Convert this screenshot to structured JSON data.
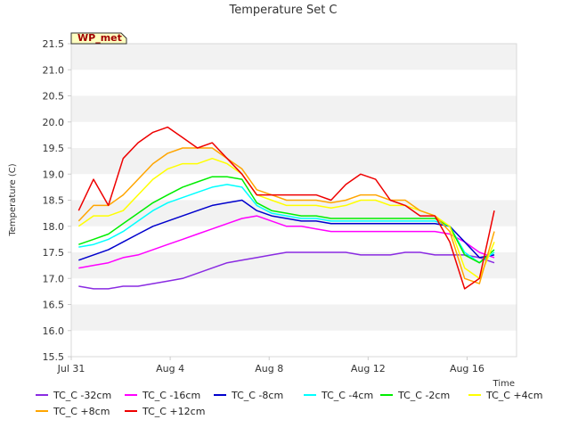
{
  "chart_data": {
    "type": "line",
    "title": "Temperature Set C",
    "xlabel": "Time",
    "ylabel": "Temperature (C)",
    "badge": "WP_met",
    "x_ticks": [
      "Jul 31",
      "Aug 4",
      "Aug 8",
      "Aug 12",
      "Aug 16"
    ],
    "xlim_days": [
      0,
      18
    ],
    "ylim": [
      15.5,
      21.5
    ],
    "y_ticks": [
      15.5,
      16.0,
      16.5,
      17.0,
      17.5,
      18.0,
      18.5,
      19.0,
      19.5,
      20.0,
      20.5,
      21.0,
      21.5
    ],
    "grid": "horizontal bands",
    "legend_position": "bottom",
    "x_days": [
      0.3,
      0.9,
      1.5,
      2.1,
      2.7,
      3.3,
      3.9,
      4.5,
      5.1,
      5.7,
      6.3,
      6.9,
      7.5,
      8.1,
      8.7,
      9.3,
      9.9,
      10.5,
      11.1,
      11.7,
      12.3,
      12.9,
      13.5,
      14.1,
      14.7,
      15.3,
      15.9,
      16.5,
      17.1
    ],
    "series": [
      {
        "name": "TC_C -32cm",
        "color": "#8a2be2",
        "values": [
          16.85,
          16.8,
          16.8,
          16.85,
          16.85,
          16.9,
          16.95,
          17.0,
          17.1,
          17.2,
          17.3,
          17.35,
          17.4,
          17.45,
          17.5,
          17.5,
          17.5,
          17.5,
          17.5,
          17.45,
          17.45,
          17.45,
          17.5,
          17.5,
          17.45,
          17.45,
          17.45,
          17.4,
          17.3
        ]
      },
      {
        "name": "TC_C -16cm",
        "color": "#ff00ff",
        "values": [
          17.2,
          17.25,
          17.3,
          17.4,
          17.45,
          17.55,
          17.65,
          17.75,
          17.85,
          17.95,
          18.05,
          18.15,
          18.2,
          18.1,
          18.0,
          18.0,
          17.95,
          17.9,
          17.9,
          17.9,
          17.9,
          17.9,
          17.9,
          17.9,
          17.9,
          17.85,
          17.7,
          17.5,
          17.4
        ]
      },
      {
        "name": "TC_C -8cm",
        "color": "#0000cd",
        "values": [
          17.35,
          17.45,
          17.55,
          17.7,
          17.85,
          18.0,
          18.1,
          18.2,
          18.3,
          18.4,
          18.45,
          18.5,
          18.3,
          18.2,
          18.15,
          18.1,
          18.1,
          18.05,
          18.05,
          18.05,
          18.05,
          18.05,
          18.05,
          18.05,
          18.05,
          18.0,
          17.7,
          17.4,
          17.45
        ]
      },
      {
        "name": "TC_C -4cm",
        "color": "#00ffff",
        "values": [
          17.6,
          17.65,
          17.75,
          17.9,
          18.1,
          18.3,
          18.45,
          18.55,
          18.65,
          18.75,
          18.8,
          18.75,
          18.4,
          18.25,
          18.2,
          18.15,
          18.15,
          18.1,
          18.1,
          18.1,
          18.1,
          18.1,
          18.1,
          18.1,
          18.1,
          18.0,
          17.5,
          17.3,
          17.5
        ]
      },
      {
        "name": "TC_C -2cm",
        "color": "#00ee00",
        "values": [
          17.65,
          17.75,
          17.85,
          18.05,
          18.25,
          18.45,
          18.6,
          18.75,
          18.85,
          18.95,
          18.95,
          18.9,
          18.45,
          18.3,
          18.25,
          18.2,
          18.2,
          18.15,
          18.15,
          18.15,
          18.15,
          18.15,
          18.15,
          18.15,
          18.15,
          18.0,
          17.45,
          17.3,
          17.55
        ]
      },
      {
        "name": "TC_C +4cm",
        "color": "#ffff00",
        "values": [
          18.0,
          18.2,
          18.2,
          18.3,
          18.6,
          18.9,
          19.1,
          19.2,
          19.2,
          19.3,
          19.2,
          19.0,
          18.6,
          18.5,
          18.4,
          18.4,
          18.4,
          18.35,
          18.4,
          18.5,
          18.5,
          18.4,
          18.4,
          18.3,
          18.2,
          18.0,
          17.2,
          17.0,
          17.7
        ]
      },
      {
        "name": "TC_C +8cm",
        "color": "#ffa500",
        "values": [
          18.1,
          18.4,
          18.4,
          18.6,
          18.9,
          19.2,
          19.4,
          19.5,
          19.5,
          19.5,
          19.3,
          19.1,
          18.7,
          18.6,
          18.5,
          18.5,
          18.5,
          18.45,
          18.5,
          18.6,
          18.6,
          18.5,
          18.5,
          18.3,
          18.2,
          17.9,
          17.0,
          16.9,
          17.9
        ]
      },
      {
        "name": "TC_C +12cm",
        "color": "#ee0000",
        "values": [
          18.3,
          18.9,
          18.4,
          19.3,
          19.6,
          19.8,
          19.9,
          19.7,
          19.5,
          19.6,
          19.3,
          19.0,
          18.6,
          18.6,
          18.6,
          18.6,
          18.6,
          18.5,
          18.8,
          19.0,
          18.9,
          18.5,
          18.4,
          18.2,
          18.2,
          17.7,
          16.8,
          17.0,
          18.3
        ]
      }
    ]
  }
}
